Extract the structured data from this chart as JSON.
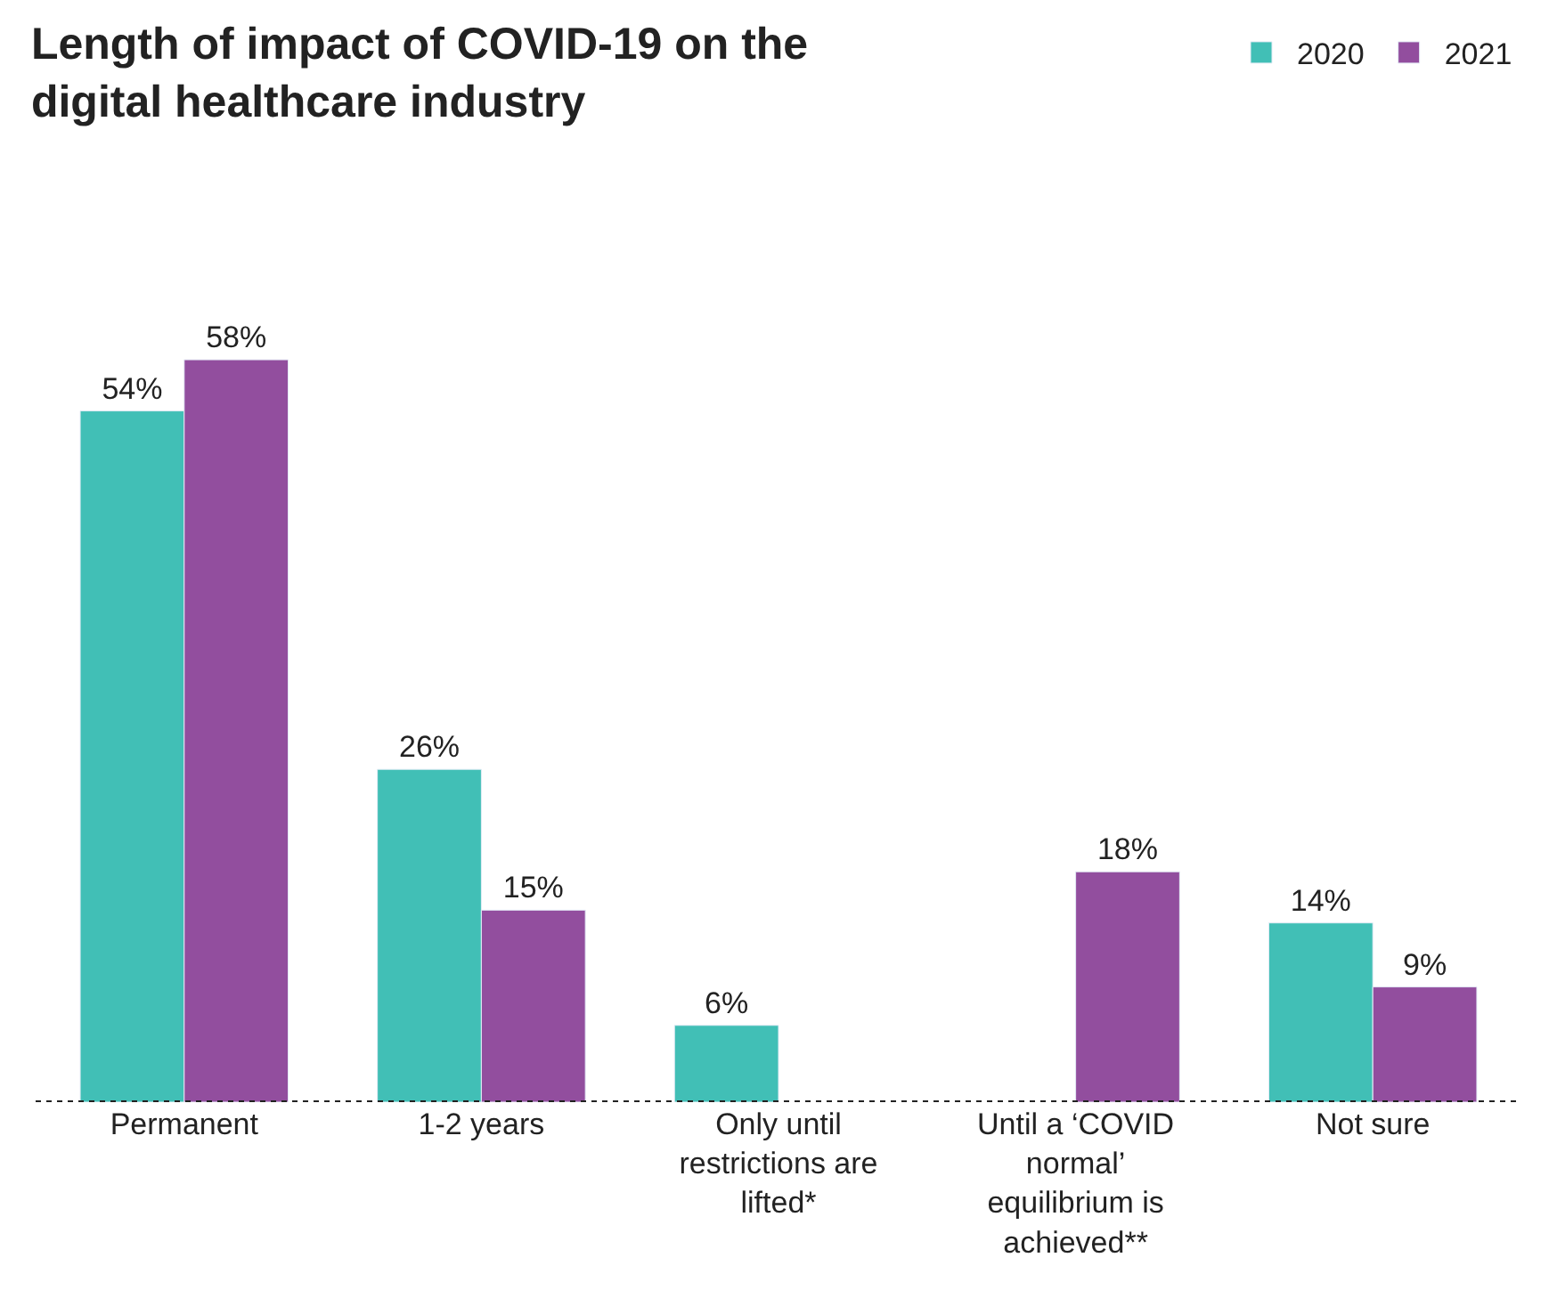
{
  "chart_data": {
    "type": "bar",
    "title": "Length of impact of COVID-19 on the digital healthcare industry",
    "categories": [
      "Permanent",
      "1-2 years",
      "Only until restrictions are lifted*",
      "Until a ‘COVID normal’ equilibrium is achieved**",
      "Not sure"
    ],
    "series": [
      {
        "name": "2020",
        "color": "#41bfb6",
        "values": [
          54,
          26,
          6,
          null,
          14
        ],
        "value_labels": [
          "54%",
          "26%",
          "6%",
          null,
          "14%"
        ]
      },
      {
        "name": "2021",
        "color": "#924e9e",
        "values": [
          58,
          15,
          null,
          18,
          9
        ],
        "value_labels": [
          "58%",
          "15%",
          null,
          "18%",
          "9%"
        ]
      }
    ],
    "legend": "top right",
    "tick_labels": "x"
  }
}
